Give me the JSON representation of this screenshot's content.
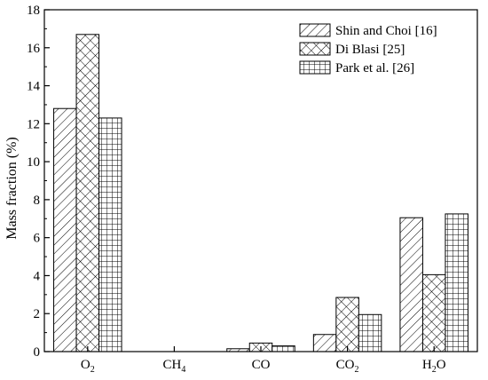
{
  "chart_data": {
    "type": "bar",
    "title": "",
    "xlabel": "",
    "ylabel": "Mass fraction (%)",
    "ylim": [
      0,
      18
    ],
    "yticks": [
      0,
      2,
      4,
      6,
      8,
      10,
      12,
      14,
      16,
      18
    ],
    "categories": [
      {
        "base": "O",
        "sub": "2"
      },
      {
        "base": "CH",
        "sub": "4"
      },
      {
        "base": "CO",
        "sub": ""
      },
      {
        "base": "CO",
        "sub": "2"
      },
      {
        "base": "H",
        "sub": "2",
        "post": "O"
      }
    ],
    "series": [
      {
        "name": "Shin and Choi [16]",
        "pattern": "diagonal-hatch",
        "values": [
          12.8,
          0.0,
          0.15,
          0.9,
          7.05
        ]
      },
      {
        "name": "Di Blasi [25]",
        "pattern": "cross-hatch",
        "values": [
          16.7,
          0.0,
          0.45,
          2.85,
          4.05
        ]
      },
      {
        "name": "Park et al. [26]",
        "pattern": "grid",
        "values": [
          12.3,
          0.0,
          0.3,
          1.95,
          7.25
        ]
      }
    ],
    "grid": false,
    "legend_position": "top-right"
  }
}
